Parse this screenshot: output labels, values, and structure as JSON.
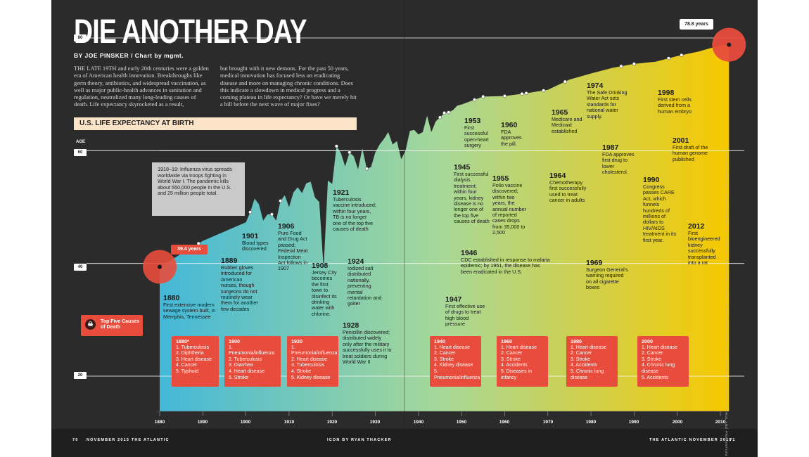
{
  "headline": "DIE ANOTHER DAY",
  "byline": "BY JOE PINSKER / Chart by mgmt.",
  "intro": {
    "col1": "THE LATE 19TH and early 20th centuries were a golden era of American health innovation. Breakthroughs like germ theory, antibiotics, and widespread vaccination, as well as major public-health advances in sanitation and regulation, neutralized many long-leading causes of death. Life expectancy skyrocketed as a result,",
    "col2": "but brought with it new demons. For the past 50 years, medical innovation has focused less on eradicating disease and more on managing chronic conditions. Does this indicate a slowdown in medical progress and a coming plateau in life expectancy? Or have we merely hit a hill before the next wave of major fixes?"
  },
  "section_header": "U.S. LIFE EXPECTANCY AT BIRTH",
  "age_label": "AGE",
  "start_value": "39.4 years",
  "end_value": "78.8 years",
  "flu_note": "1918–19: Influenza virus spreads worldwide via troops fighting in World War I. The pandemic kills about 550,000 people in the U.S. and 25 million people total.",
  "top5_label": "Top Five Causes of Death",
  "events": [
    {
      "year": "1880",
      "text": "First extensive modern sewage system built, in Memphis, Tennessee"
    },
    {
      "year": "1889",
      "text": "Rubber gloves introduced for American nurses, though surgeons do not routinely wear them for another few decades"
    },
    {
      "year": "1901",
      "text": "Blood types discovered"
    },
    {
      "year": "1906",
      "text": "Pure Food and Drug Act passed; Federal Meat Inspection Act follows in 1907"
    },
    {
      "year": "1908",
      "text": "Jersey City becomes the first town to disinfect its drinking water with chlorine."
    },
    {
      "year": "1921",
      "text": "Tuberculosis vaccine introduced; within four years, TB is no longer one of the top five causes of death"
    },
    {
      "year": "1924",
      "text": "Iodized salt distributed nationally, preventing mental retardation and goiter"
    },
    {
      "year": "1928",
      "text": "Penicillin discovered; distributed widely only after the military successfully uses it to treat soldiers during World War II"
    },
    {
      "year": "1945",
      "text": "First successful dialysis treatment; within four years, kidney disease is no longer one of the top five causes of death"
    },
    {
      "year": "1946",
      "text": "CDC established in response to malaria epidemic; by 1951, the disease has been eradicated in the U.S."
    },
    {
      "year": "1947",
      "text": "First effective use of drugs to treat high blood pressure"
    },
    {
      "year": "1953",
      "text": "First successful open-heart surgery"
    },
    {
      "year": "1955",
      "text": "Polio vaccine discovered; within two years, the annual number of reported cases drops from 35,000 to 2,500"
    },
    {
      "year": "1960",
      "text": "FDA approves the pill."
    },
    {
      "year": "1964",
      "text": "Chemotherapy first successfully used to treat cancer in adults"
    },
    {
      "year": "1965",
      "text": "Medicare and Medicaid established"
    },
    {
      "year": "1969",
      "text": "Surgeon General's warning required on all cigarette boxes"
    },
    {
      "year": "1974",
      "text": "The Safe Drinking Water Act sets standards for national water supply."
    },
    {
      "year": "1987",
      "text": "FDA approves first drug to lower cholesterol."
    },
    {
      "year": "1990",
      "text": "Congress passes CARE Act, which funnels hundreds of millions of dollars to HIV/AIDS treatment in its first year."
    },
    {
      "year": "1998",
      "text": "First stem cells derived from a human embryo"
    },
    {
      "year": "2001",
      "text": "First draft of the human genome published"
    },
    {
      "year": "2012",
      "text": "First bioengineered kidney successfully transplanted into a rat"
    }
  ],
  "causes": [
    {
      "decade": "1880*",
      "items": [
        "1. Tuberculosis",
        "2. Diphtheria",
        "3. Heart disease",
        "4. Cancer",
        "5. Typhoid"
      ]
    },
    {
      "decade": "1900",
      "items": [
        "1. Pneumonia/influenza",
        "2. Tuberculosis",
        "3. Diarrhea",
        "4. Heart disease",
        "5. Stroke"
      ]
    },
    {
      "decade": "1920",
      "items": [
        "1. Pneumonia/influenza",
        "2. Heart disease",
        "3. Tuberculosis",
        "4. Stroke",
        "5. Kidney disease"
      ]
    },
    {
      "decade": "1940",
      "items": [
        "1. Heart disease",
        "2. Cancer",
        "3. Stroke",
        "4. Kidney disease",
        "5. Pneumonia/influenza"
      ]
    },
    {
      "decade": "1960",
      "items": [
        "1. Heart disease",
        "2. Cancer",
        "3. Stroke",
        "4. Accidents",
        "5. Diseases in infancy"
      ]
    },
    {
      "decade": "1980",
      "items": [
        "1. Heart disease",
        "2. Cancer",
        "3. Stroke",
        "4. Accidents",
        "5. Chronic lung disease"
      ]
    },
    {
      "decade": "2000",
      "items": [
        "1. Heart disease",
        "2. Cancer",
        "3. Stroke",
        "4. Chronic lung disease",
        "5. Accidents"
      ]
    }
  ],
  "footer": {
    "left_page": "70",
    "left_text": "NOVEMBER 2015   THE ATLANTIC",
    "credit": "ICON BY RYAN THACKER",
    "right_text": "THE ATLANTIC   NOVEMBER 2015",
    "right_page": "71"
  },
  "side_note": "*1880 DATA SPECIFIC TO MASSACHUSETTS. SOURCES: DEPARTMENT OF HEALTH AND HUMAN SERVICES; CENTERS FOR DISEASE CONTROL AND PREVENTION",
  "colors": {
    "background": "#2b2b2b",
    "accent": "#e74c3c",
    "start": "#43b8d8",
    "mid": "#a8d898",
    "end": "#f7c800"
  },
  "chart_data": {
    "type": "area",
    "title": "U.S. LIFE EXPECTANCY AT BIRTH",
    "ylabel": "AGE",
    "xlim": [
      1880,
      2012
    ],
    "ylim": [
      20,
      80
    ],
    "yticks": [
      20,
      40,
      60,
      80
    ],
    "xticks": [
      1880,
      1890,
      1900,
      1910,
      1920,
      1930,
      1940,
      1950,
      1960,
      1970,
      1980,
      1990,
      2000,
      2010
    ],
    "x": [
      1880,
      1890,
      1900,
      1901,
      1902,
      1903,
      1904,
      1905,
      1906,
      1907,
      1908,
      1909,
      1910,
      1911,
      1912,
      1913,
      1914,
      1915,
      1916,
      1917,
      1918,
      1919,
      1920,
      1921,
      1922,
      1923,
      1924,
      1925,
      1926,
      1927,
      1928,
      1929,
      1930,
      1931,
      1932,
      1933,
      1934,
      1935,
      1936,
      1937,
      1938,
      1939,
      1940,
      1941,
      1942,
      1943,
      1944,
      1945,
      1946,
      1947,
      1948,
      1949,
      1950,
      1955,
      1960,
      1965,
      1970,
      1975,
      1980,
      1985,
      1990,
      1995,
      2000,
      2005,
      2010,
      2012
    ],
    "values": [
      39.4,
      44.0,
      47.3,
      49.1,
      51.5,
      50.5,
      47.6,
      48.7,
      48.7,
      47.6,
      51.1,
      52.1,
      50.0,
      52.6,
      53.5,
      52.5,
      54.2,
      54.5,
      51.7,
      50.9,
      39.1,
      54.7,
      54.1,
      60.8,
      59.6,
      57.2,
      59.7,
      59.0,
      56.7,
      60.4,
      56.8,
      57.1,
      59.7,
      61.1,
      62.1,
      63.3,
      61.1,
      61.7,
      58.5,
      60.0,
      63.5,
      63.7,
      62.9,
      63.3,
      66.2,
      63.3,
      65.2,
      65.9,
      66.7,
      66.8,
      67.2,
      68.0,
      68.2,
      69.6,
      69.7,
      70.2,
      70.8,
      72.6,
      73.7,
      74.7,
      75.4,
      75.8,
      76.8,
      77.6,
      78.7,
      78.8
    ],
    "annotations": {
      "start": "39.4 years",
      "end": "78.8 years"
    }
  }
}
